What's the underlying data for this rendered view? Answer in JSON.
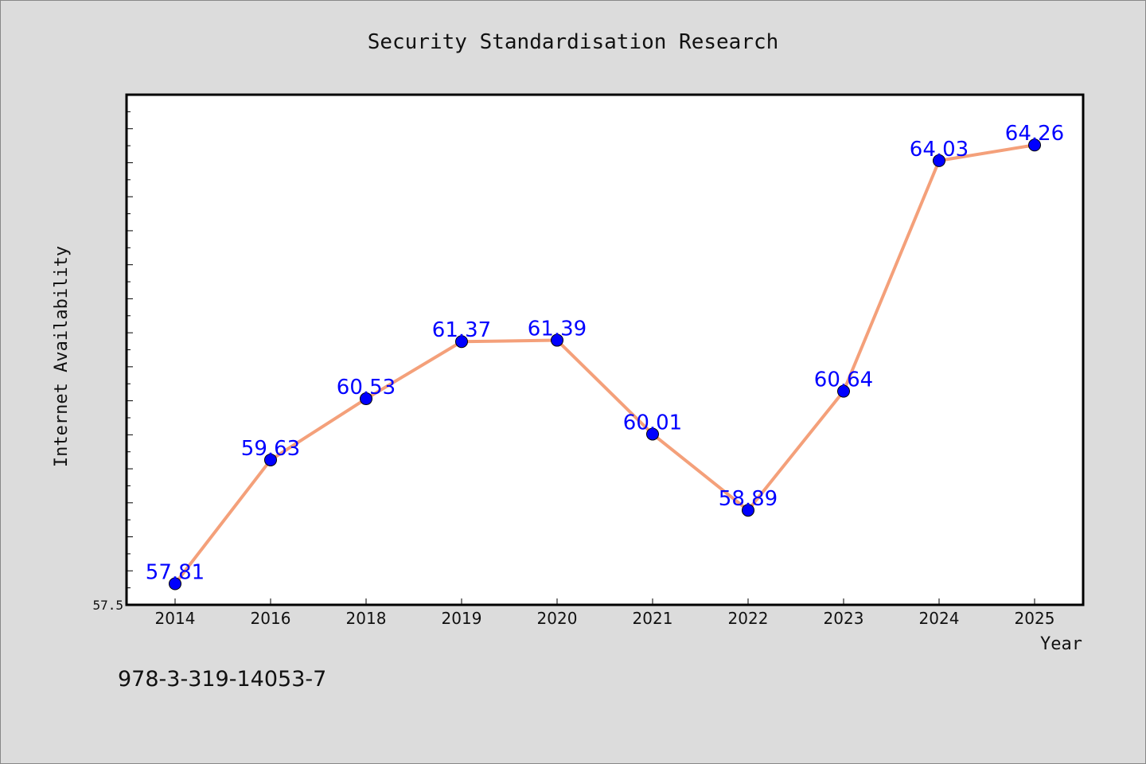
{
  "chart_data": {
    "type": "line",
    "title": "Security Standardisation Research",
    "xlabel": "Year",
    "ylabel": "Internet Availability",
    "categories": [
      "2014",
      "2016",
      "2018",
      "2019",
      "2020",
      "2021",
      "2022",
      "2023",
      "2024",
      "2025"
    ],
    "series": [
      {
        "values": [
          57.81,
          59.63,
          60.53,
          61.37,
          61.39,
          60.01,
          58.89,
          60.64,
          64.03,
          64.26
        ],
        "data_labels": [
          "57.81",
          "59.63",
          "60.53",
          "61.37",
          "61.39",
          "60.01",
          "58.89",
          "60.64",
          "64.03",
          "64.26"
        ]
      }
    ],
    "ylim": [
      57.5,
      65.0
    ],
    "y_tick_labels": [
      "57.5"
    ],
    "grid": false,
    "line_color": "#f4a07a",
    "marker_color": "#0000ff",
    "label_color": "#0000ff"
  },
  "footer": {
    "isbn": "978-3-319-14053-7"
  }
}
